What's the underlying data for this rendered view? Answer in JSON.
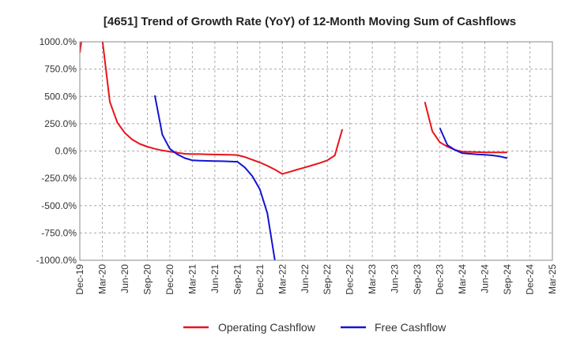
{
  "chart_data": {
    "type": "line",
    "title": "[4651]  Trend of Growth Rate (YoY) of 12-Month Moving Sum of Cashflows",
    "xlabel": "",
    "ylabel": "",
    "ylim": [
      -1000,
      1000
    ],
    "yticks": [
      1000,
      750,
      500,
      250,
      0,
      -250,
      -500,
      -750,
      -1000
    ],
    "ytick_labels": [
      "1000.0%",
      "750.0%",
      "500.0%",
      "250.0%",
      "0.0%",
      "-250.0%",
      "-500.0%",
      "-750.0%",
      "-1000.0%"
    ],
    "x_start": "2019-12",
    "x_end": "2025-03",
    "xtick_labels": [
      "Dec-19",
      "Mar-20",
      "Jun-20",
      "Sep-20",
      "Dec-20",
      "Mar-21",
      "Jun-21",
      "Sep-21",
      "Dec-21",
      "Mar-22",
      "Jun-22",
      "Sep-22",
      "Dec-22",
      "Mar-23",
      "Jun-23",
      "Sep-23",
      "Dec-23",
      "Mar-24",
      "Jun-24",
      "Sep-24",
      "Dec-24",
      "Mar-25"
    ],
    "grid": true,
    "legend_position": "bottom",
    "series": [
      {
        "name": "Operating Cashflow",
        "color": "#e8141b",
        "points": [
          [
            "2019-12",
            900
          ],
          [
            "2020-01",
            1400
          ],
          [
            "2020-02",
            1300
          ],
          [
            "2020-03",
            1020
          ],
          [
            "2020-04",
            450
          ],
          [
            "2020-05",
            260
          ],
          [
            "2020-06",
            165
          ],
          [
            "2020-07",
            105
          ],
          [
            "2020-08",
            65
          ],
          [
            "2020-09",
            40
          ],
          [
            "2020-10",
            20
          ],
          [
            "2020-11",
            5
          ],
          [
            "2020-12",
            -5
          ],
          [
            "2021-01",
            -15
          ],
          [
            "2021-02",
            -25
          ],
          [
            "2021-03",
            -28
          ],
          [
            "2021-04",
            -28
          ],
          [
            "2021-05",
            -30
          ],
          [
            "2021-06",
            -32
          ],
          [
            "2021-07",
            -33
          ],
          [
            "2021-08",
            -35
          ],
          [
            "2021-09",
            -37
          ],
          [
            "2021-10",
            -55
          ],
          [
            "2021-11",
            -80
          ],
          [
            "2021-12",
            -105
          ],
          [
            "2022-01",
            -135
          ],
          [
            "2022-02",
            -170
          ],
          [
            "2022-03",
            -210
          ],
          [
            "2022-04",
            -190
          ],
          [
            "2022-05",
            -170
          ],
          [
            "2022-06",
            -150
          ],
          [
            "2022-07",
            -130
          ],
          [
            "2022-08",
            -110
          ],
          [
            "2022-09",
            -85
          ],
          [
            "2022-10",
            -40
          ],
          [
            "2022-11",
            200
          ]
        ],
        "segments": [
          [
            [
              "2023-10",
              450
            ],
            [
              "2023-11",
              180
            ],
            [
              "2023-12",
              80
            ],
            [
              "2024-01",
              40
            ],
            [
              "2024-02",
              10
            ],
            [
              "2024-03",
              -5
            ],
            [
              "2024-04",
              -8
            ],
            [
              "2024-05",
              -10
            ],
            [
              "2024-06",
              -12
            ],
            [
              "2024-07",
              -12
            ],
            [
              "2024-08",
              -13
            ],
            [
              "2024-09",
              -13
            ]
          ]
        ]
      },
      {
        "name": "Free Cashflow",
        "color": "#1414d2",
        "points": [
          [
            "2020-10",
            510
          ],
          [
            "2020-11",
            150
          ],
          [
            "2020-12",
            20
          ],
          [
            "2021-01",
            -30
          ],
          [
            "2021-02",
            -65
          ],
          [
            "2021-03",
            -85
          ],
          [
            "2021-04",
            -88
          ],
          [
            "2021-05",
            -90
          ],
          [
            "2021-06",
            -92
          ],
          [
            "2021-07",
            -93
          ],
          [
            "2021-08",
            -95
          ],
          [
            "2021-09",
            -98
          ],
          [
            "2021-10",
            -150
          ],
          [
            "2021-11",
            -230
          ],
          [
            "2021-12",
            -350
          ],
          [
            "2022-01",
            -570
          ],
          [
            "2022-02",
            -1000
          ]
        ],
        "segments": [
          [
            [
              "2023-12",
              210
            ],
            [
              "2024-01",
              55
            ],
            [
              "2024-02",
              10
            ],
            [
              "2024-03",
              -20
            ],
            [
              "2024-04",
              -25
            ],
            [
              "2024-05",
              -30
            ],
            [
              "2024-06",
              -35
            ],
            [
              "2024-07",
              -40
            ],
            [
              "2024-08",
              -50
            ],
            [
              "2024-09",
              -65
            ]
          ]
        ]
      }
    ]
  }
}
